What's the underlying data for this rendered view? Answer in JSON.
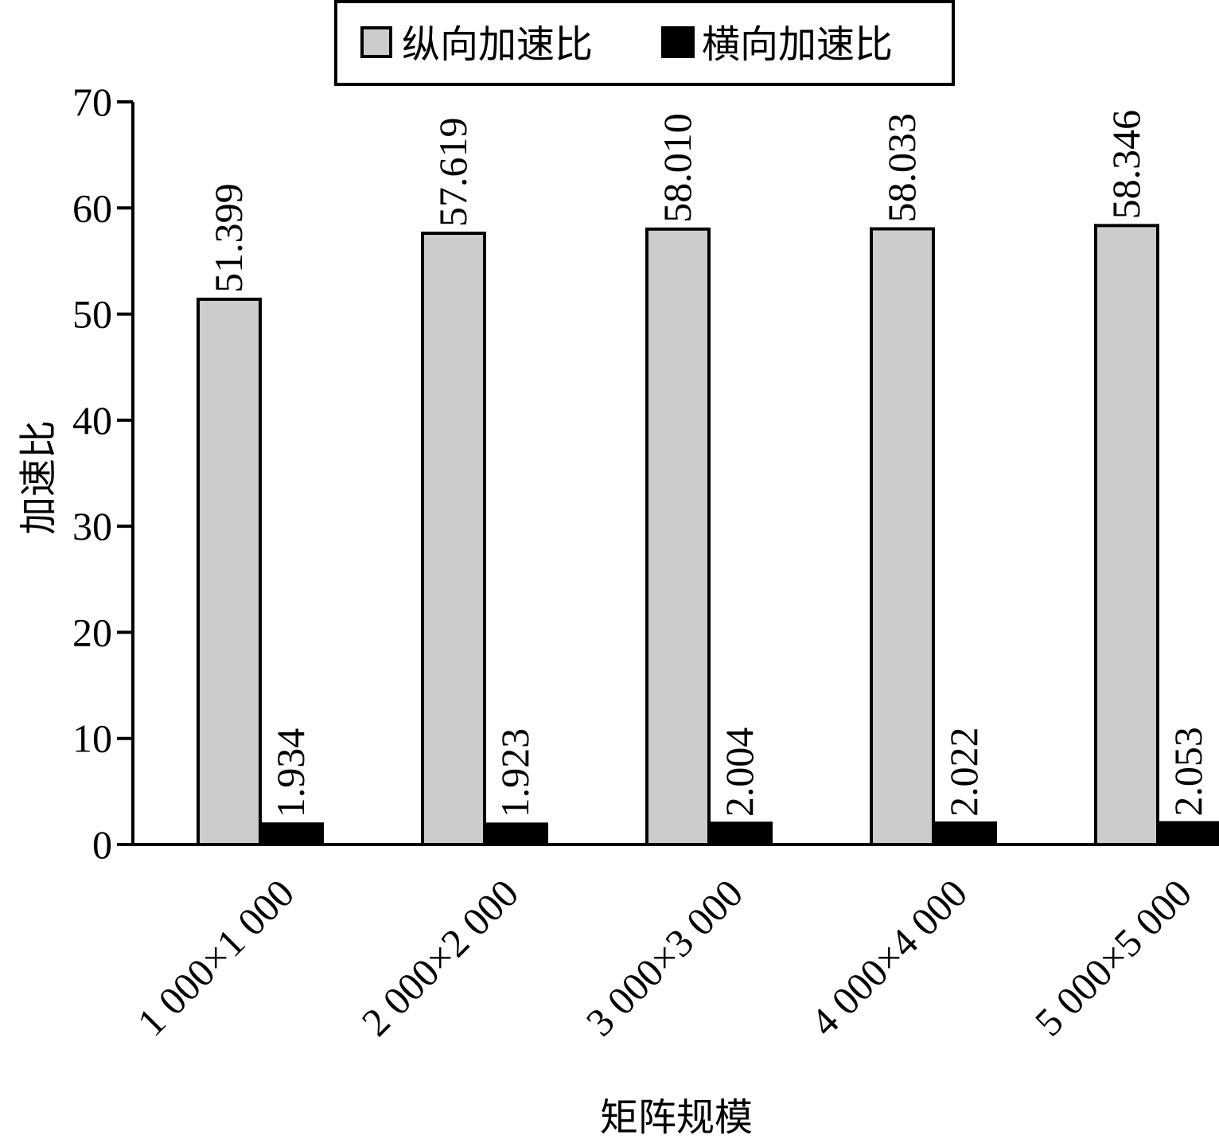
{
  "chart_data": {
    "type": "bar",
    "categories": [
      "1 000×1 000",
      "2 000×2 000",
      "3 000×3 000",
      "4 000×4 000",
      "5 000×5 000"
    ],
    "series": [
      {
        "name": "纵向加速比",
        "color": "#cccccc",
        "values": [
          51.399,
          57.619,
          58.01,
          58.033,
          58.346
        ],
        "labels": [
          "51.399",
          "57.619",
          "58.010",
          "58.033",
          "58.346"
        ]
      },
      {
        "name": "横向加速比",
        "color": "#000000",
        "values": [
          1.934,
          1.923,
          2.004,
          2.022,
          2.053
        ],
        "labels": [
          "1.934",
          "1.923",
          "2.004",
          "2.022",
          "2.053"
        ]
      }
    ],
    "xlabel": "矩阵规模",
    "ylabel": "加速比",
    "ylim": [
      0,
      70
    ],
    "yticks": [
      "0",
      "10",
      "20",
      "30",
      "40",
      "50",
      "60",
      "70"
    ],
    "grid": false,
    "legend_position": "top-center",
    "data_labels_rotated": true,
    "category_labels_rotated": true
  }
}
